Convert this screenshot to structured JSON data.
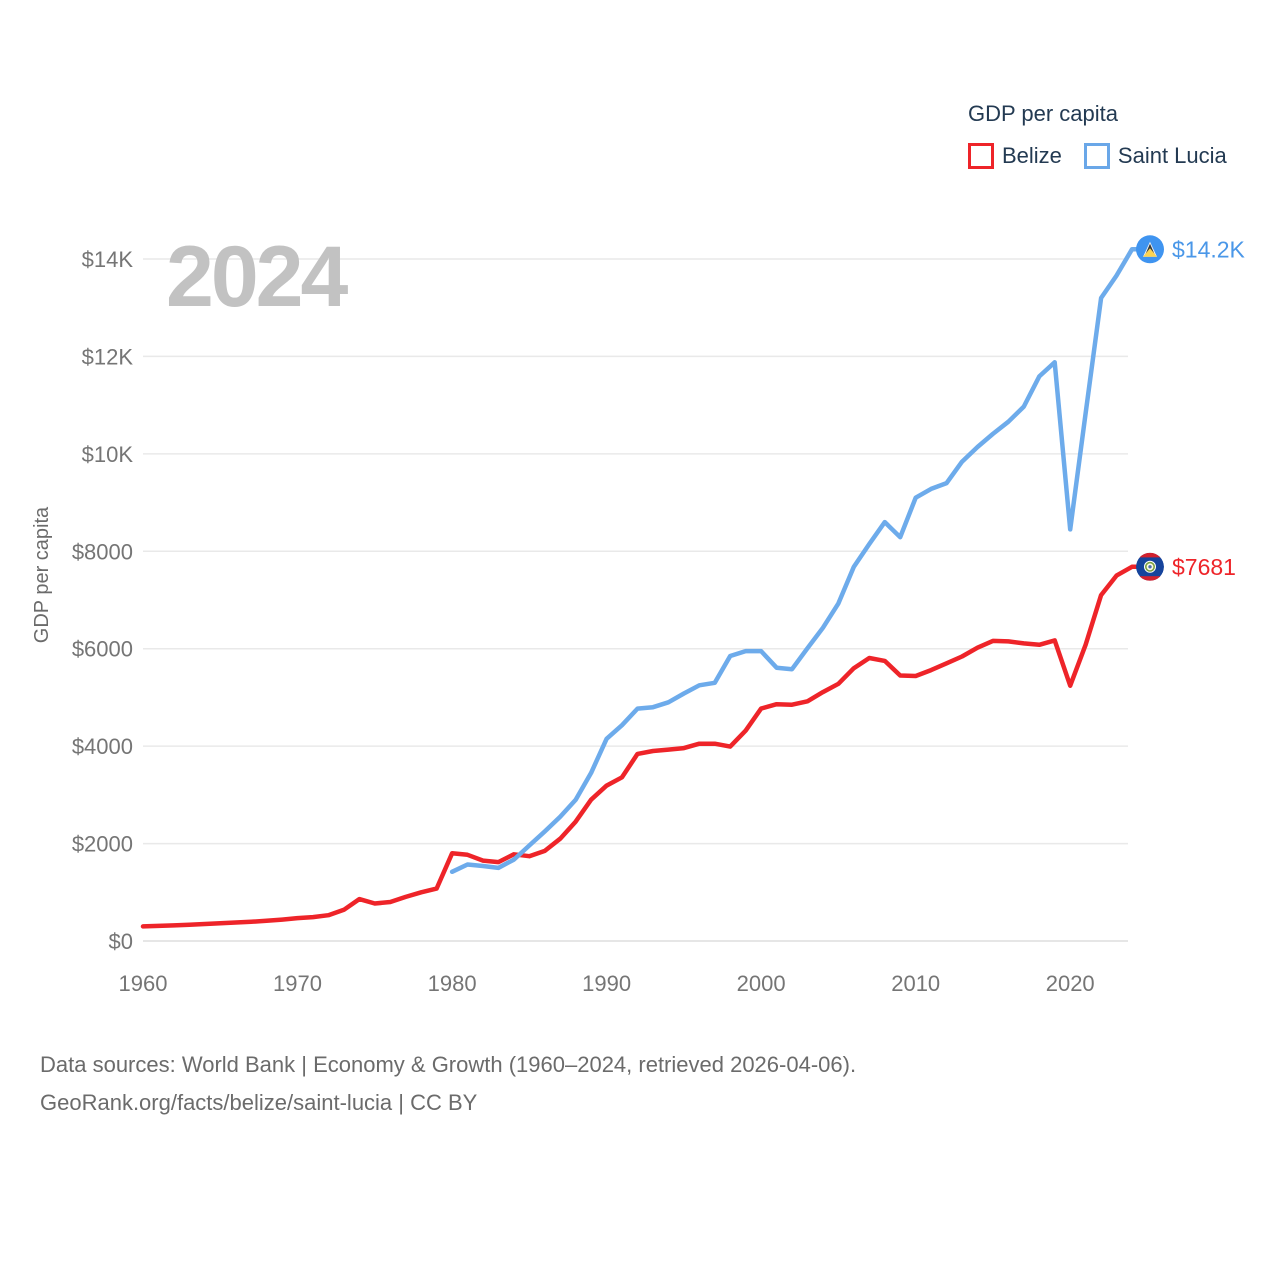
{
  "legend": {
    "title_note": "legend title bound from chart_data.title"
  },
  "footer": {
    "line1": "Data sources: World Bank | Economy & Growth (1960–2024, retrieved 2026-04-06).",
    "line2": "GeoRank.org/facts/belize/saint-lucia | CC BY"
  },
  "chart_data": {
    "type": "line",
    "title": "GDP per capita",
    "ylabel": "GDP per capita",
    "watermark": "2024",
    "x_range": [
      1960,
      2024
    ],
    "ylim": [
      0,
      14000
    ],
    "grid": "horizontal",
    "legend_position": "top-right",
    "y_ticks": [
      {
        "value": 0,
        "label": "$0"
      },
      {
        "value": 2000,
        "label": "$2000"
      },
      {
        "value": 4000,
        "label": "$4000"
      },
      {
        "value": 6000,
        "label": "$6000"
      },
      {
        "value": 8000,
        "label": "$8000"
      },
      {
        "value": 10000,
        "label": "$10K"
      },
      {
        "value": 12000,
        "label": "$12K"
      },
      {
        "value": 14000,
        "label": "$14K"
      }
    ],
    "x_ticks": [
      {
        "value": 1960,
        "label": "1960"
      },
      {
        "value": 1970,
        "label": "1970"
      },
      {
        "value": 1980,
        "label": "1980"
      },
      {
        "value": 1990,
        "label": "1990"
      },
      {
        "value": 2000,
        "label": "2000"
      },
      {
        "value": 2010,
        "label": "2010"
      },
      {
        "value": 2020,
        "label": "2020"
      }
    ],
    "series": [
      {
        "name": "Belize",
        "color": "#ee2429",
        "label_color": "#ee2429",
        "start_year": 1960,
        "end_year": 2024,
        "end_value": 7681,
        "end_label": "$7681",
        "values": [
          300,
          310,
          320,
          335,
          350,
          365,
          380,
          395,
          415,
          440,
          470,
          490,
          530,
          640,
          860,
          770,
          800,
          905,
          1000,
          1075,
          1800,
          1770,
          1650,
          1620,
          1780,
          1740,
          1850,
          2100,
          2450,
          2900,
          3190,
          3360,
          3840,
          3900,
          3930,
          3960,
          4050,
          4050,
          3990,
          4320,
          4770,
          4860,
          4850,
          4920,
          5110,
          5280,
          5600,
          5810,
          5750,
          5450,
          5440,
          5560,
          5700,
          5840,
          6020,
          6160,
          6150,
          6110,
          6080,
          6170,
          5240,
          6080,
          7100,
          7500,
          7681
        ]
      },
      {
        "name": "Saint Lucia",
        "color": "#6dabeb",
        "label_color": "#4a97e8",
        "start_year": 1980,
        "end_year": 2024,
        "end_value": 14200,
        "end_label": "$14.2K",
        "values": [
          1420,
          1570,
          1540,
          1500,
          1670,
          1960,
          2250,
          2550,
          2900,
          3450,
          4150,
          4430,
          4770,
          4800,
          4900,
          5080,
          5250,
          5300,
          5850,
          5950,
          5950,
          5610,
          5580,
          6010,
          6430,
          6930,
          7680,
          8150,
          8600,
          8290,
          9100,
          9280,
          9400,
          9840,
          10140,
          10410,
          10660,
          10970,
          11590,
          11880,
          8450,
          10830,
          13200,
          13660,
          14200
        ]
      }
    ]
  }
}
